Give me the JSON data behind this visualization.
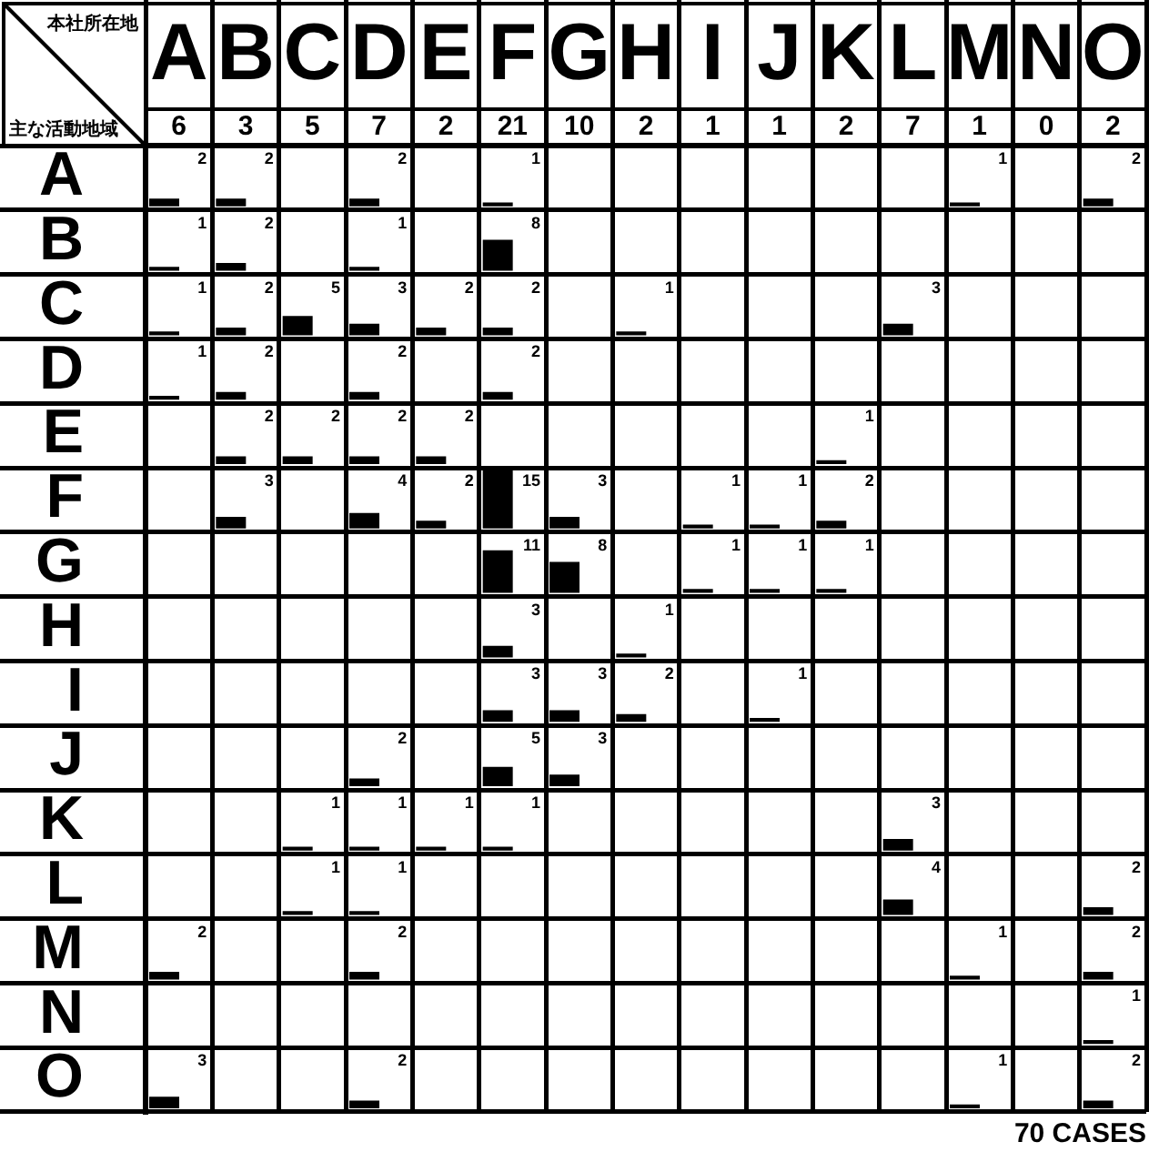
{
  "chart_data": {
    "type": "heatmap",
    "xlabel": "本社所在地",
    "ylabel": "主な活動地域",
    "categories": [
      "A",
      "B",
      "C",
      "D",
      "E",
      "F",
      "G",
      "H",
      "I",
      "J",
      "K",
      "L",
      "M",
      "N",
      "O"
    ],
    "y_categories": [
      "A",
      "B",
      "C",
      "D",
      "E",
      "F",
      "G",
      "H",
      "I",
      "J",
      "K",
      "L",
      "M",
      "N",
      "O"
    ],
    "cells": [
      [
        2,
        2,
        null,
        2,
        null,
        1,
        null,
        null,
        null,
        null,
        null,
        null,
        1,
        null,
        2
      ],
      [
        1,
        2,
        null,
        1,
        null,
        8,
        null,
        null,
        null,
        null,
        null,
        null,
        null,
        null,
        null
      ],
      [
        1,
        2,
        5,
        3,
        2,
        2,
        null,
        1,
        null,
        null,
        null,
        3,
        null,
        null,
        null
      ],
      [
        1,
        2,
        null,
        2,
        null,
        2,
        null,
        null,
        null,
        null,
        null,
        null,
        null,
        null,
        null
      ],
      [
        null,
        2,
        2,
        2,
        2,
        null,
        null,
        null,
        null,
        null,
        1,
        null,
        null,
        null,
        null
      ],
      [
        null,
        3,
        null,
        4,
        2,
        15,
        3,
        null,
        1,
        1,
        2,
        null,
        null,
        null,
        null
      ],
      [
        null,
        null,
        null,
        null,
        null,
        11,
        8,
        null,
        1,
        1,
        1,
        null,
        null,
        null,
        null
      ],
      [
        null,
        null,
        null,
        null,
        null,
        3,
        null,
        1,
        null,
        null,
        null,
        null,
        null,
        null,
        null
      ],
      [
        null,
        null,
        null,
        null,
        null,
        3,
        3,
        2,
        null,
        1,
        null,
        null,
        null,
        null,
        null
      ],
      [
        null,
        null,
        null,
        2,
        null,
        5,
        3,
        null,
        null,
        null,
        null,
        null,
        null,
        null,
        null
      ],
      [
        null,
        null,
        1,
        1,
        1,
        1,
        null,
        null,
        null,
        null,
        null,
        3,
        null,
        null,
        null
      ],
      [
        null,
        null,
        1,
        1,
        null,
        null,
        null,
        null,
        null,
        null,
        null,
        4,
        null,
        null,
        2
      ],
      [
        2,
        null,
        null,
        2,
        null,
        null,
        null,
        null,
        null,
        null,
        null,
        null,
        1,
        null,
        2
      ],
      [
        null,
        null,
        null,
        null,
        null,
        null,
        null,
        null,
        null,
        null,
        null,
        null,
        null,
        null,
        1
      ],
      [
        3,
        null,
        null,
        2,
        null,
        null,
        null,
        null,
        null,
        null,
        null,
        null,
        1,
        null,
        2
      ]
    ],
    "color": "#000000",
    "grid": true,
    "data_labels": true,
    "annotations": [
      "6",
      "3",
      "5",
      "7",
      "2",
      "21",
      "10",
      "2",
      "1",
      "1",
      "2",
      "7",
      "1",
      "0",
      "2",
      "70 CASES"
    ]
  }
}
